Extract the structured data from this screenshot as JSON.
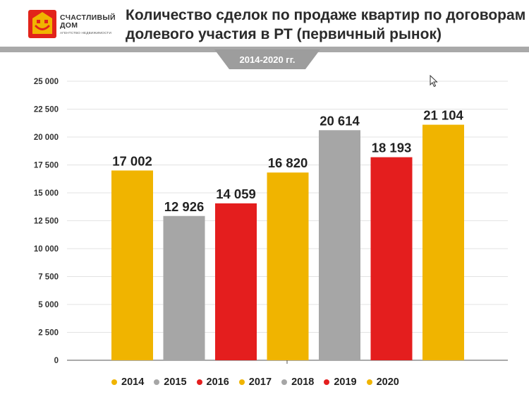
{
  "logo": {
    "name_line1": "СЧАСТЛИВЫЙ",
    "name_line2": "ДОМ",
    "tagline": "АГЕНТСТВО НЕДВИЖИМОСТИ",
    "brand_color": "#e2231a",
    "accent_color": "#f0b400"
  },
  "header": {
    "title_line1": "Количество сделок по продаже квартир по договорам",
    "title_line2": "долевого участия в РТ (первичный рынок)",
    "period": "2014-2020 гг."
  },
  "chart_data": {
    "type": "bar",
    "title": "Количество сделок по продаже квартир по договорам долевого участия в РТ (первичный рынок)",
    "subtitle": "2014-2020 гг.",
    "categories": [
      "2014",
      "2015",
      "2016",
      "2017",
      "2018",
      "2019",
      "2020"
    ],
    "values": [
      17002,
      12926,
      14059,
      16820,
      20614,
      18193,
      21104
    ],
    "value_labels": [
      "17 002",
      "12 926",
      "14 059",
      "16 820",
      "20 614",
      "18 193",
      "21 104"
    ],
    "colors": [
      "#f0b400",
      "#a6a6a6",
      "#e41e1e",
      "#f0b400",
      "#a6a6a6",
      "#e41e1e",
      "#f0b400"
    ],
    "ylim": [
      0,
      25000
    ],
    "yticks": [
      0,
      2500,
      5000,
      7500,
      10000,
      12500,
      15000,
      17500,
      20000,
      22500,
      25000
    ],
    "ytick_labels": [
      "0",
      "2 500",
      "5 000",
      "7 500",
      "10 000",
      "12 500",
      "15 000",
      "17 500",
      "20 000",
      "22 500",
      "25 000"
    ],
    "grid": true,
    "legend_position": "bottom",
    "xlabel": "",
    "ylabel": ""
  }
}
